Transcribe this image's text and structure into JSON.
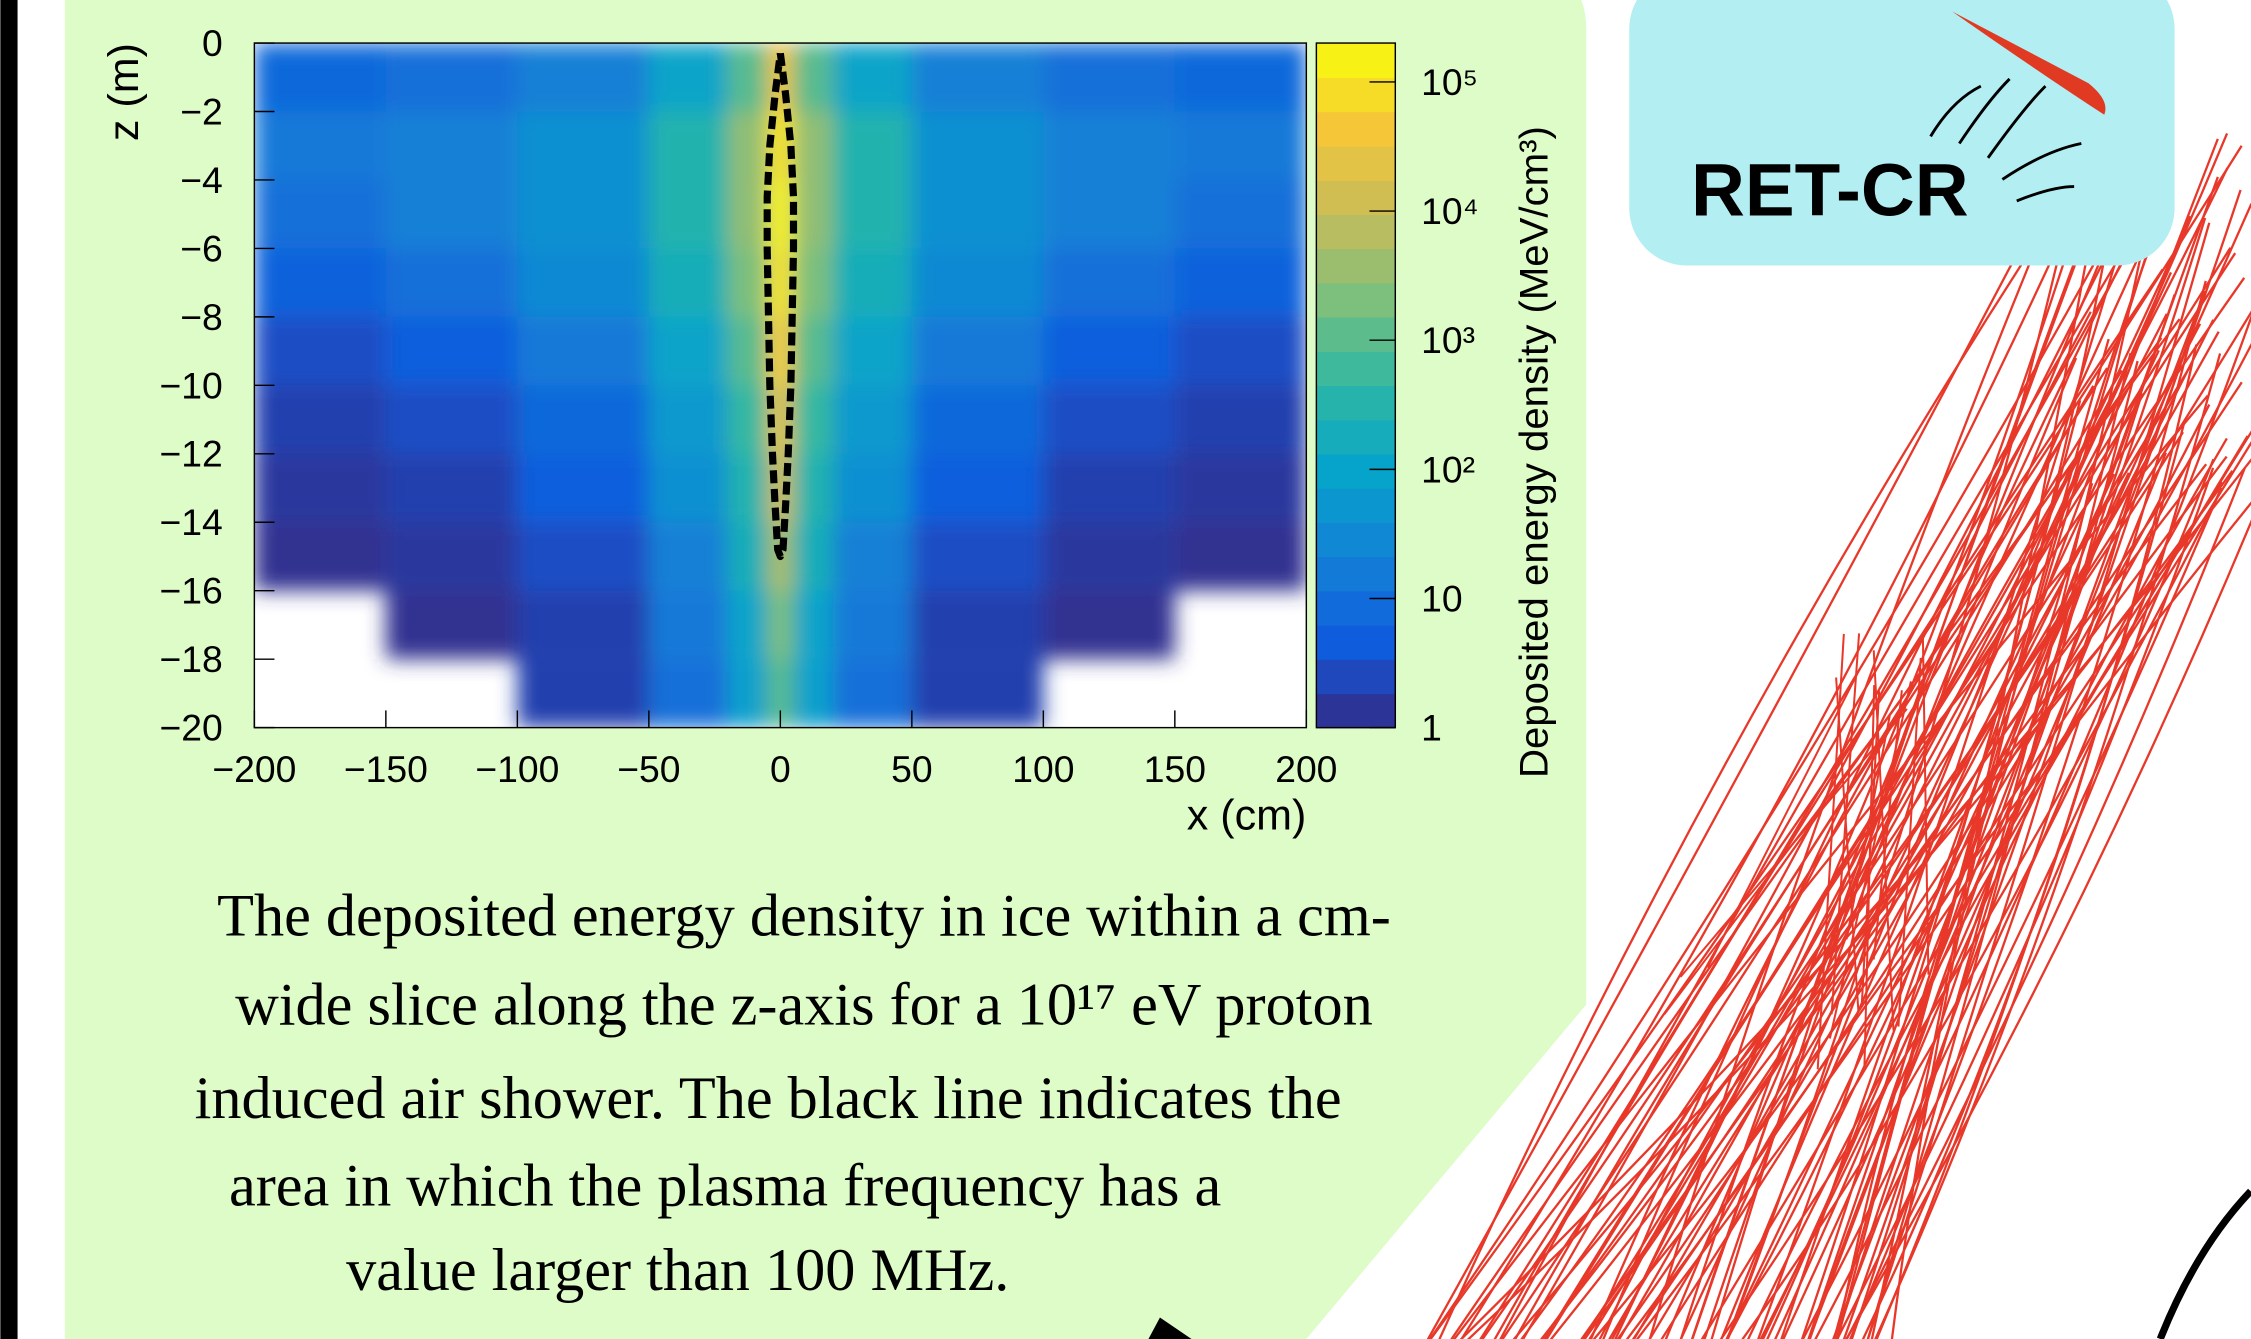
{
  "chart_data": {
    "type": "heatmap",
    "xlabel": "x (cm)",
    "ylabel": "z (m)",
    "zlabel": "Deposited energy density (MeV/cm³)",
    "xlim": [
      -200,
      200
    ],
    "ylim": [
      -20,
      0
    ],
    "zlim": [
      1,
      200000
    ],
    "zscale": "log",
    "xticks": [
      {
        "value": -200,
        "label": "−200"
      },
      {
        "value": -150,
        "label": "−150"
      },
      {
        "value": -100,
        "label": "−100"
      },
      {
        "value": -50,
        "label": "−50"
      },
      0,
      50,
      100,
      150,
      200
    ],
    "yticks": [
      0,
      {
        "value": -2,
        "label": "−2"
      },
      {
        "value": -4,
        "label": "−4"
      },
      {
        "value": -6,
        "label": "−6"
      },
      {
        "value": -8,
        "label": "−8"
      },
      {
        "value": -10,
        "label": "−10"
      },
      {
        "value": -12,
        "label": "−12"
      },
      {
        "value": -14,
        "label": "−14"
      },
      {
        "value": -16,
        "label": "−16"
      },
      {
        "value": -18,
        "label": "−18"
      },
      {
        "value": -20,
        "label": "−20"
      }
    ],
    "zticks": [
      1,
      10,
      {
        "value": 100,
        "label": "10²"
      },
      {
        "value": 1000,
        "label": "10³"
      },
      {
        "value": 10000,
        "label": "10⁴"
      },
      {
        "value": 100000,
        "label": "10⁵"
      }
    ],
    "colormap": [
      "#352a87",
      "#0f5cdd",
      "#1481d6",
      "#06a4ca",
      "#2eb7a4",
      "#7dbf7c",
      "#c8bc5a",
      "#f5c738",
      "#f9fb0e"
    ],
    "x_bins": [
      -200,
      -150,
      -100,
      -50,
      -20,
      -5,
      5,
      20,
      50,
      100,
      150,
      200
    ],
    "y_bins": [
      0,
      -2,
      -4,
      -6,
      -8,
      -10,
      -12,
      -14,
      -16,
      -18,
      -20
    ],
    "values": [
      [
        8,
        10,
        20,
        100,
        1000,
        30000,
        1000,
        100,
        20,
        10,
        8
      ],
      [
        15,
        20,
        40,
        300,
        3000,
        100000,
        3000,
        300,
        40,
        20,
        15
      ],
      [
        10,
        20,
        40,
        300,
        3000,
        150000,
        3000,
        300,
        40,
        20,
        10
      ],
      [
        6,
        10,
        30,
        200,
        2000,
        100000,
        2000,
        200,
        30,
        10,
        6
      ],
      [
        3,
        5,
        15,
        100,
        1000,
        50000,
        1000,
        100,
        15,
        5,
        3
      ],
      [
        2,
        3,
        8,
        60,
        500,
        20000,
        500,
        60,
        8,
        3,
        2
      ],
      [
        1.5,
        2,
        5,
        40,
        300,
        10000,
        300,
        40,
        5,
        2,
        1.5
      ],
      [
        1.2,
        1.5,
        3,
        20,
        200,
        5000,
        200,
        20,
        3,
        1.5,
        1.2
      ],
      [
        null,
        1.2,
        2,
        15,
        100,
        2000,
        100,
        15,
        2,
        1.2,
        null
      ],
      [
        null,
        null,
        2,
        10,
        80,
        1000,
        80,
        10,
        2,
        null,
        null
      ]
    ],
    "contour": {
      "x": [
        0,
        2,
        4,
        5,
        5,
        4.5,
        4,
        3,
        2,
        1,
        0,
        -1,
        -2,
        -3,
        -4,
        -4.5,
        -5,
        -5,
        -4,
        -2,
        0
      ],
      "y": [
        -0.3,
        -1.5,
        -3,
        -4.5,
        -6,
        -8,
        -10,
        -12,
        -13.5,
        -14.8,
        -15,
        -14.8,
        -13.5,
        -12,
        -10,
        -8,
        -6,
        -4.5,
        -3,
        -1.5,
        -0.3
      ]
    }
  },
  "caption": [
    "The deposited energy density in ice within a cm-",
    "wide slice along the z-axis for a 10¹⁷ eV proton",
    "induced air shower. The black line indicates the",
    "area in which the plasma frequency has a",
    "value larger than 100 MHz."
  ],
  "logo": "RET-CR"
}
